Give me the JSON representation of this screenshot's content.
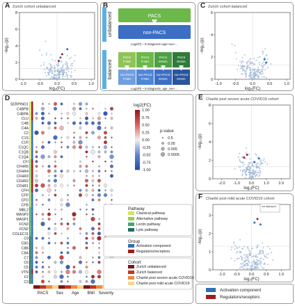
{
  "panelA": {
    "label": "A",
    "title": "Zurich cohort unbalanced"
  },
  "panelB": {
    "label": "B",
    "unbalanced_label": "unbalanced",
    "balanced_label": "balanced",
    "pacs_label": "PACS",
    "nonpacs_label": "non-PACS",
    "formula1": "Log2(P) ~ 0+Diagnosis+age+sex+…",
    "formula2": "Log2(P) ~ 0+Diagnosis_age_sex+…",
    "grid_top": [
      "PACS F<MA",
      "PACS F>MA",
      "PACS M<MA",
      "PACS M>MA"
    ],
    "grid_bottom": [
      "non-PACS F<MA",
      "non-PACS F>MA",
      "non-PACS M<MA",
      "non-PACS M>MA"
    ]
  },
  "panelC": {
    "label": "C",
    "title": "Zurich cohort balanced"
  },
  "panelD": {
    "label": "D",
    "rows": [
      "SERPING1",
      "C4BPB",
      "C4BPA",
      "CLU",
      "C4B",
      "C4A",
      "C2",
      "C1S",
      "C1R",
      "C1QC",
      "C1QB",
      "C1QA",
      "CFI",
      "CFHR5",
      "CFHR4",
      "CFHR3",
      "CFHR2",
      "CFHR1",
      "CFH",
      "CFP",
      "CFD",
      "CFB",
      "MBL2",
      "MASP2",
      "MASP1",
      "FCN3",
      "FCN2",
      "COLEC11",
      "C9",
      "C8G",
      "C8B",
      "C8A",
      "C7",
      "C6",
      "C5",
      "VTN",
      "F2",
      "C3"
    ],
    "xlabels": [
      "PACS",
      "Sex",
      "Age",
      "BMI",
      "Severity"
    ],
    "colorbar_title": "log2(FC)",
    "colorbar_ticks": [
      "1.00",
      "0.75",
      "0.50",
      "0.25",
      "0.00",
      "-0.25",
      "-0.50",
      "-0.75",
      "-1.00"
    ],
    "pvalue_title": "p-value",
    "pvalue_items": [
      "0.5",
      "0.05",
      "0.005",
      "0.0005"
    ],
    "pathway_title": "Pathway",
    "pathway_items": [
      {
        "label": "Classical pathway",
        "color": "#d7e35a"
      },
      {
        "label": "Alternative pathway",
        "color": "#8fcf5c"
      },
      {
        "label": "Lectin pathway",
        "color": "#46a86a"
      },
      {
        "label": "Lytic pathway",
        "color": "#1f6f5e"
      }
    ],
    "group_title": "Group",
    "group_items": [
      {
        "label": "Activation component",
        "color": "#2f6db5"
      },
      {
        "label": "Regulators/receptors",
        "color": "#9e1b1b"
      }
    ],
    "cohort_title": "Cohort",
    "cohort_items": [
      {
        "label": "Zurich unbalanced",
        "color": "#7b1518"
      },
      {
        "label": "Zurich balanced",
        "color": "#c2361f"
      },
      {
        "label": "Charité post severe acute COVID19",
        "color": "#ee8a3c"
      },
      {
        "label": "Charité post mild acute COVID19",
        "color": "#f7d58a"
      }
    ]
  },
  "panelE": {
    "label": "E",
    "title": "Charité post severe acute COVID19 cohort"
  },
  "panelF": {
    "label": "F",
    "title": "Charité post mild acute COVID19 cohort",
    "inset": "not displayed"
  },
  "axes": {
    "x_label": "log₂(FC)",
    "y_label": "−log₁₀(p)"
  },
  "legendG": {
    "items": [
      {
        "label": "Activation component",
        "color": "#2f6db5"
      },
      {
        "label": "Regulators/receptors",
        "color": "#9e1b1b"
      }
    ]
  }
}
